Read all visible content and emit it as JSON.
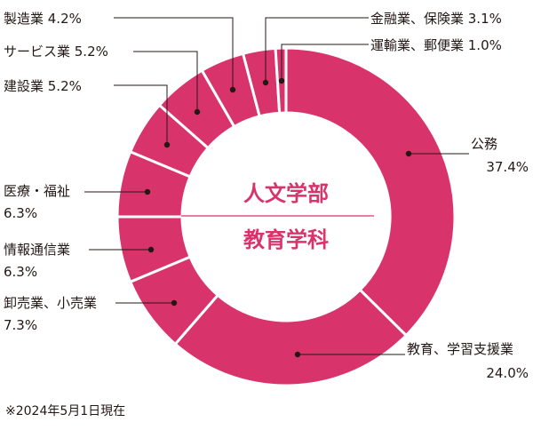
{
  "chart_data": {
    "type": "pie",
    "title": "",
    "center_label": [
      "人文学部",
      "教育学科"
    ],
    "unit": "%",
    "slices": [
      {
        "name": "公務",
        "value": 37.4
      },
      {
        "name": "教育、学習支援業",
        "value": 24.0
      },
      {
        "name": "卸売業、小売業",
        "value": 7.3
      },
      {
        "name": "情報通信業",
        "value": 6.3
      },
      {
        "name": "医療・福祉",
        "value": 6.3
      },
      {
        "name": "建設業",
        "value": 5.2
      },
      {
        "name": "サービス業",
        "value": 5.2
      },
      {
        "name": "製造業",
        "value": 4.2
      },
      {
        "name": "金融業、保険業",
        "value": 3.1
      },
      {
        "name": "運輸業、郵便業",
        "value": 1.0
      }
    ],
    "labels": [
      {
        "lines": [
          "公務",
          "37.4%"
        ]
      },
      {
        "lines": [
          "教育、学習支援業",
          "24.0%"
        ]
      },
      {
        "lines": [
          "卸売業、小売業",
          "7.3%"
        ]
      },
      {
        "lines": [
          "情報通信業",
          "6.3%"
        ]
      },
      {
        "lines": [
          "医療・福祉",
          "6.3%"
        ]
      },
      {
        "lines": [
          "建設業 5.2%"
        ]
      },
      {
        "lines": [
          "サービス業 5.2%"
        ]
      },
      {
        "lines": [
          "製造業 4.2%"
        ]
      },
      {
        "lines": [
          "金融業、保険業 3.1%"
        ]
      },
      {
        "lines": [
          "運輸業、郵便業 1.0%"
        ]
      }
    ],
    "color": "#d9336b",
    "separator_color": "#ffffff"
  },
  "footnote": "※2024年5月1日現在"
}
